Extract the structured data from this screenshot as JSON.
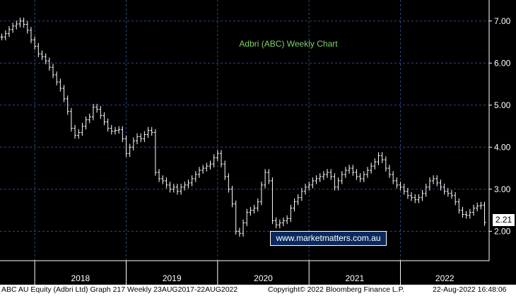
{
  "chart_data": {
    "type": "ohlc",
    "title": "Adbri (ABC) Weekly Chart",
    "x_ticks": [
      "2018",
      "2019",
      "2020",
      "2021",
      "2022"
    ],
    "y_ticks": [
      "2.00",
      "3.00",
      "4.00",
      "5.00",
      "6.00",
      "7.00"
    ],
    "ylim": [
      1.3,
      7.5
    ],
    "last_value": "2.21",
    "grid": true,
    "colors": {
      "background": "#000000",
      "grid": "#2b4a8a",
      "bars": "#ffffff",
      "title": "#7fd36a",
      "watermark_bg": "#0a2a5e"
    },
    "series": [
      {
        "values": [
          [
            2017.64,
            6.62
          ],
          [
            2017.68,
            6.7
          ],
          [
            2017.72,
            6.8
          ],
          [
            2017.76,
            6.88
          ],
          [
            2017.8,
            6.93
          ],
          [
            2017.84,
            7.0
          ],
          [
            2017.88,
            6.92
          ],
          [
            2017.92,
            6.78
          ],
          [
            2017.96,
            6.55
          ],
          [
            2018.0,
            6.4
          ],
          [
            2018.04,
            6.22
          ],
          [
            2018.08,
            6.15
          ],
          [
            2018.12,
            6.05
          ],
          [
            2018.16,
            5.9
          ],
          [
            2018.2,
            5.72
          ],
          [
            2018.24,
            5.55
          ],
          [
            2018.28,
            5.4
          ],
          [
            2018.32,
            5.15
          ],
          [
            2018.36,
            4.85
          ],
          [
            2018.4,
            4.45
          ],
          [
            2018.44,
            4.28
          ],
          [
            2018.48,
            4.35
          ],
          [
            2018.52,
            4.5
          ],
          [
            2018.56,
            4.65
          ],
          [
            2018.6,
            4.72
          ],
          [
            2018.64,
            4.95
          ],
          [
            2018.68,
            4.9
          ],
          [
            2018.72,
            4.75
          ],
          [
            2018.76,
            4.6
          ],
          [
            2018.8,
            4.45
          ],
          [
            2018.84,
            4.38
          ],
          [
            2018.88,
            4.4
          ],
          [
            2018.92,
            4.42
          ],
          [
            2018.96,
            4.2
          ],
          [
            2019.0,
            3.85
          ],
          [
            2019.04,
            4.0
          ],
          [
            2019.08,
            4.15
          ],
          [
            2019.12,
            4.25
          ],
          [
            2019.16,
            4.2
          ],
          [
            2019.2,
            4.3
          ],
          [
            2019.24,
            4.4
          ],
          [
            2019.28,
            4.35
          ],
          [
            2019.32,
            3.4
          ],
          [
            2019.36,
            3.25
          ],
          [
            2019.4,
            3.2
          ],
          [
            2019.44,
            3.1
          ],
          [
            2019.48,
            3.0
          ],
          [
            2019.52,
            3.05
          ],
          [
            2019.56,
            2.95
          ],
          [
            2019.6,
            3.05
          ],
          [
            2019.64,
            3.1
          ],
          [
            2019.68,
            3.15
          ],
          [
            2019.72,
            3.25
          ],
          [
            2019.76,
            3.35
          ],
          [
            2019.8,
            3.45
          ],
          [
            2019.84,
            3.5
          ],
          [
            2019.88,
            3.55
          ],
          [
            2019.92,
            3.6
          ],
          [
            2019.96,
            3.75
          ],
          [
            2020.0,
            3.85
          ],
          [
            2020.04,
            3.6
          ],
          [
            2020.08,
            3.3
          ],
          [
            2020.12,
            3.0
          ],
          [
            2020.16,
            2.65
          ],
          [
            2020.2,
            2.0
          ],
          [
            2020.24,
            1.95
          ],
          [
            2020.28,
            2.2
          ],
          [
            2020.32,
            2.45
          ],
          [
            2020.36,
            2.5
          ],
          [
            2020.4,
            2.55
          ],
          [
            2020.44,
            2.7
          ],
          [
            2020.48,
            3.1
          ],
          [
            2020.52,
            3.4
          ],
          [
            2020.56,
            3.2
          ],
          [
            2020.6,
            2.25
          ],
          [
            2020.64,
            2.15
          ],
          [
            2020.68,
            2.2
          ],
          [
            2020.72,
            2.25
          ],
          [
            2020.76,
            2.3
          ],
          [
            2020.8,
            2.55
          ],
          [
            2020.84,
            2.7
          ],
          [
            2020.88,
            2.8
          ],
          [
            2020.92,
            2.95
          ],
          [
            2020.96,
            3.05
          ],
          [
            2021.0,
            3.1
          ],
          [
            2021.04,
            3.2
          ],
          [
            2021.08,
            3.25
          ],
          [
            2021.12,
            3.3
          ],
          [
            2021.16,
            3.35
          ],
          [
            2021.2,
            3.4
          ],
          [
            2021.24,
            3.3
          ],
          [
            2021.28,
            3.05
          ],
          [
            2021.32,
            3.2
          ],
          [
            2021.36,
            3.35
          ],
          [
            2021.4,
            3.45
          ],
          [
            2021.44,
            3.5
          ],
          [
            2021.48,
            3.4
          ],
          [
            2021.52,
            3.3
          ],
          [
            2021.56,
            3.25
          ],
          [
            2021.6,
            3.35
          ],
          [
            2021.64,
            3.45
          ],
          [
            2021.68,
            3.55
          ],
          [
            2021.72,
            3.65
          ],
          [
            2021.76,
            3.8
          ],
          [
            2021.8,
            3.7
          ],
          [
            2021.84,
            3.5
          ],
          [
            2021.88,
            3.35
          ],
          [
            2021.92,
            3.2
          ],
          [
            2021.96,
            3.1
          ],
          [
            2022.0,
            3.05
          ],
          [
            2022.04,
            2.95
          ],
          [
            2022.08,
            2.85
          ],
          [
            2022.12,
            2.8
          ],
          [
            2022.16,
            2.75
          ],
          [
            2022.2,
            2.8
          ],
          [
            2022.24,
            2.9
          ],
          [
            2022.28,
            3.05
          ],
          [
            2022.32,
            3.2
          ],
          [
            2022.36,
            3.25
          ],
          [
            2022.4,
            3.15
          ],
          [
            2022.44,
            3.05
          ],
          [
            2022.48,
            2.95
          ],
          [
            2022.52,
            2.9
          ],
          [
            2022.56,
            2.85
          ],
          [
            2022.6,
            2.7
          ],
          [
            2022.64,
            2.5
          ],
          [
            2022.68,
            2.4
          ],
          [
            2022.72,
            2.38
          ],
          [
            2022.76,
            2.45
          ],
          [
            2022.8,
            2.55
          ],
          [
            2022.84,
            2.6
          ],
          [
            2022.88,
            2.62
          ],
          [
            2022.92,
            2.21
          ]
        ]
      }
    ]
  },
  "watermark": "www.marketmatters.com.au",
  "footer": {
    "left": "ABC AU Equity (Adbri Ltd) Graph 217  Weekly 23AUG2017-22AUG2022",
    "middle": "Copyright© 2022 Bloomberg Finance L.P.",
    "right": "22-Aug-2022 16:48:06"
  }
}
